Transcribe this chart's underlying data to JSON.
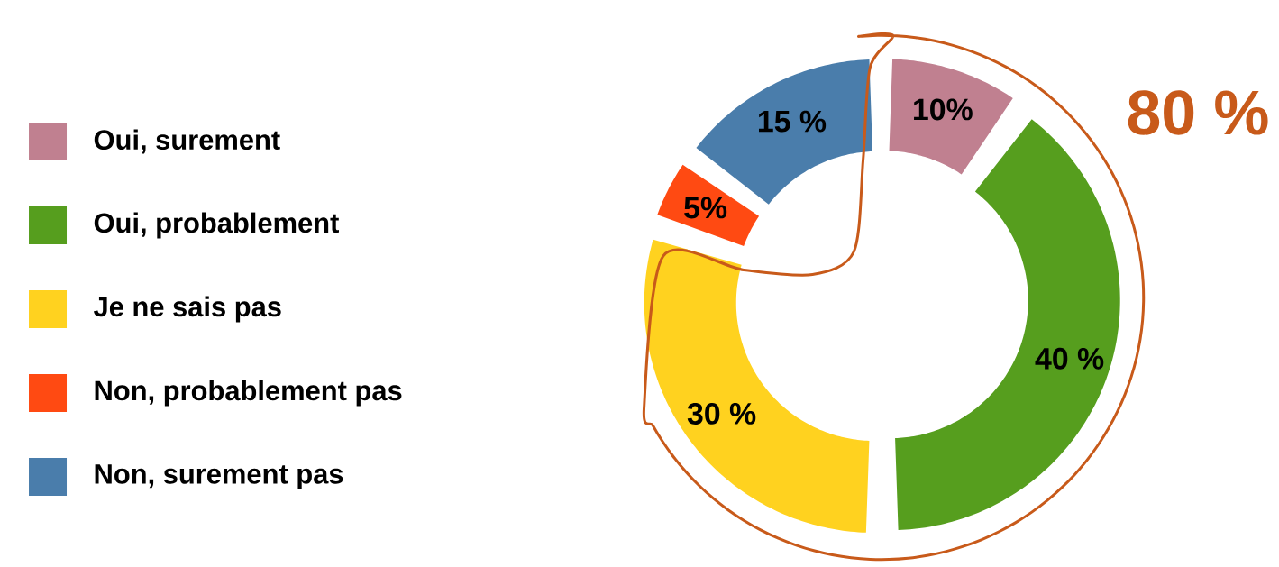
{
  "chart_data": {
    "type": "donut",
    "categories": [
      "Oui, surement",
      "Oui, probablement",
      "Je ne sais pas",
      "Non, probablement pas",
      "Non, surement pas"
    ],
    "values": [
      10,
      40,
      30,
      5,
      15
    ],
    "colors": [
      "#c08090",
      "#569e1e",
      "#ffd21f",
      "#ff4a12",
      "#4a7dab"
    ],
    "value_labels": [
      "10%",
      "40 %",
      "30 %",
      "5%",
      "15 %"
    ],
    "annotations": [
      "80 %"
    ],
    "legend": "left"
  }
}
